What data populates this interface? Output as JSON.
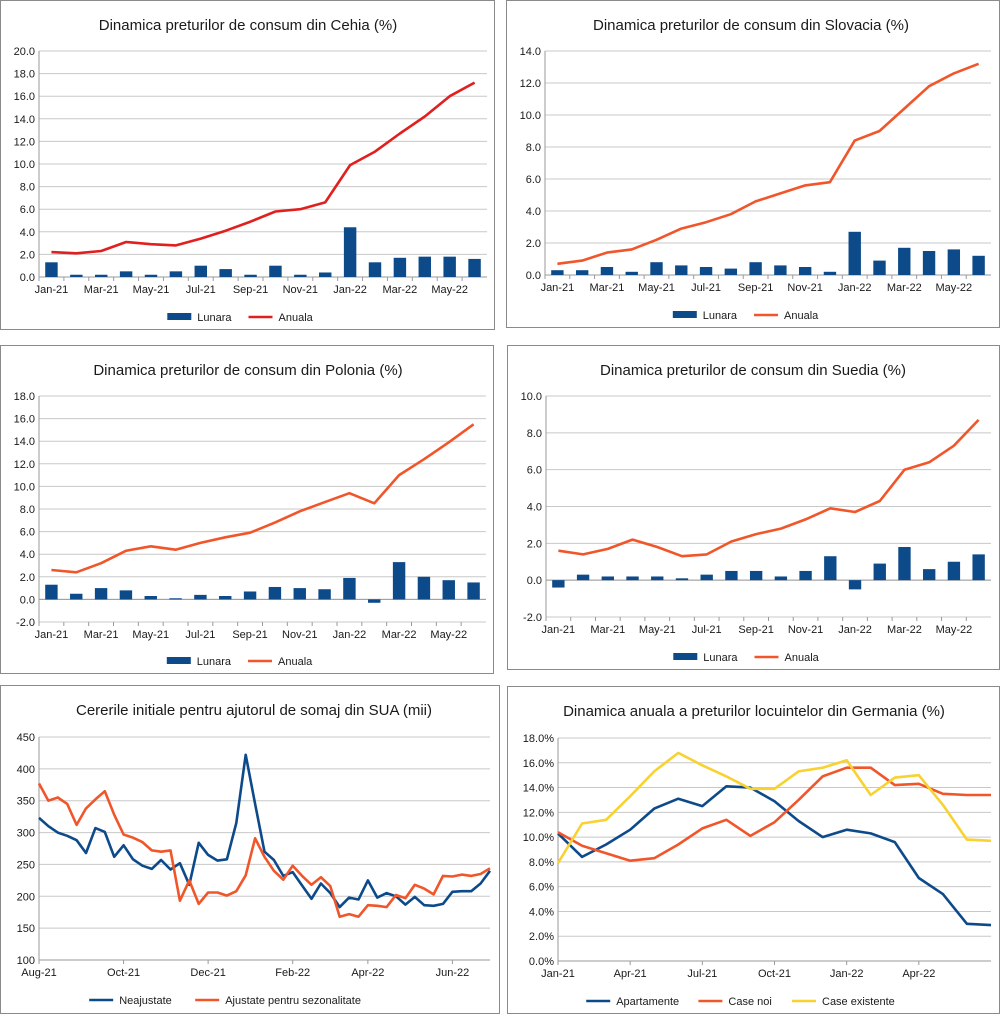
{
  "chart_data": [
    {
      "id": "cz",
      "type": "bar+line",
      "title": "Dinamica preturilor de consum din Cehia (%)",
      "ylim": [
        0,
        20
      ],
      "ytick_step": 2,
      "ytick_decimals": 1,
      "categories": [
        "Jan-21",
        "Feb-21",
        "Mar-21",
        "Apr-21",
        "May-21",
        "Jun-21",
        "Jul-21",
        "Aug-21",
        "Sep-21",
        "Oct-21",
        "Nov-21",
        "Dec-21",
        "Jan-22",
        "Feb-22",
        "Mar-22",
        "Apr-22",
        "May-22",
        "Jun-22"
      ],
      "xtick_labels": [
        "Jan-21",
        "Mar-21",
        "May-21",
        "Jul-21",
        "Sep-21",
        "Nov-21",
        "Jan-22",
        "Mar-22",
        "May-22"
      ],
      "series": [
        {
          "name": "Lunara",
          "kind": "bar",
          "color": "#0d4a8a",
          "values": [
            1.3,
            0.2,
            0.2,
            0.5,
            0.2,
            0.5,
            1.0,
            0.7,
            0.2,
            1.0,
            0.2,
            0.4,
            4.4,
            1.3,
            1.7,
            1.8,
            1.8,
            1.6
          ]
        },
        {
          "name": "Anuala",
          "kind": "line",
          "color": "#e0201f",
          "values": [
            2.2,
            2.1,
            2.3,
            3.1,
            2.9,
            2.8,
            3.4,
            4.1,
            4.9,
            5.8,
            6.0,
            6.6,
            9.9,
            11.1,
            12.7,
            14.2,
            16.0,
            17.2
          ]
        }
      ]
    },
    {
      "id": "sk",
      "type": "bar+line",
      "title": "Dinamica preturilor de consum din Slovacia (%)",
      "ylim": [
        0,
        14
      ],
      "ytick_step": 2,
      "ytick_decimals": 1,
      "categories": [
        "Jan-21",
        "Feb-21",
        "Mar-21",
        "Apr-21",
        "May-21",
        "Jun-21",
        "Jul-21",
        "Aug-21",
        "Sep-21",
        "Oct-21",
        "Nov-21",
        "Dec-21",
        "Jan-22",
        "Feb-22",
        "Mar-22",
        "Apr-22",
        "May-22",
        "Jun-22"
      ],
      "xtick_labels": [
        "Jan-21",
        "Mar-21",
        "May-21",
        "Jul-21",
        "Sep-21",
        "Nov-21",
        "Jan-22",
        "Mar-22",
        "May-22"
      ],
      "series": [
        {
          "name": "Lunara",
          "kind": "bar",
          "color": "#0d4a8a",
          "values": [
            0.3,
            0.3,
            0.5,
            0.2,
            0.8,
            0.6,
            0.5,
            0.4,
            0.8,
            0.6,
            0.5,
            0.2,
            2.7,
            0.9,
            1.7,
            1.5,
            1.6,
            1.2
          ]
        },
        {
          "name": "Anuala",
          "kind": "line",
          "color": "#f0562a",
          "values": [
            0.7,
            0.9,
            1.4,
            1.6,
            2.2,
            2.9,
            3.3,
            3.8,
            4.6,
            5.1,
            5.6,
            5.8,
            8.4,
            9.0,
            10.4,
            11.8,
            12.6,
            13.2
          ]
        }
      ]
    },
    {
      "id": "pl",
      "type": "bar+line",
      "title": "Dinamica preturilor de consum din Polonia (%)",
      "ylim": [
        -2,
        18
      ],
      "ytick_step": 2,
      "ytick_decimals": 1,
      "categories": [
        "Jan-21",
        "Feb-21",
        "Mar-21",
        "Apr-21",
        "May-21",
        "Jun-21",
        "Jul-21",
        "Aug-21",
        "Sep-21",
        "Oct-21",
        "Nov-21",
        "Dec-21",
        "Jan-22",
        "Feb-22",
        "Mar-22",
        "Apr-22",
        "May-22",
        "Jun-22"
      ],
      "xtick_labels": [
        "Jan-21",
        "Mar-21",
        "May-21",
        "Jul-21",
        "Sep-21",
        "Nov-21",
        "Jan-22",
        "Mar-22",
        "May-22"
      ],
      "series": [
        {
          "name": "Lunara",
          "kind": "bar",
          "color": "#0d4a8a",
          "values": [
            1.3,
            0.5,
            1.0,
            0.8,
            0.3,
            0.1,
            0.4,
            0.3,
            0.7,
            1.1,
            1.0,
            0.9,
            1.9,
            -0.3,
            3.3,
            2.0,
            1.7,
            1.5
          ]
        },
        {
          "name": "Anuala",
          "kind": "line",
          "color": "#f0562a",
          "values": [
            2.6,
            2.4,
            3.2,
            4.3,
            4.7,
            4.4,
            5.0,
            5.5,
            5.9,
            6.8,
            7.8,
            8.6,
            9.4,
            8.5,
            11.0,
            12.4,
            13.9,
            15.5
          ]
        }
      ]
    },
    {
      "id": "se",
      "type": "bar+line",
      "title": "Dinamica preturilor de consum din Suedia (%)",
      "ylim": [
        -2,
        10
      ],
      "ytick_step": 2,
      "ytick_decimals": 1,
      "categories": [
        "Jan-21",
        "Feb-21",
        "Mar-21",
        "Apr-21",
        "May-21",
        "Jun-21",
        "Jul-21",
        "Aug-21",
        "Sep-21",
        "Oct-21",
        "Nov-21",
        "Dec-21",
        "Jan-22",
        "Feb-22",
        "Mar-22",
        "Apr-22",
        "May-22",
        "Jun-22"
      ],
      "xtick_labels": [
        "Jan-21",
        "Mar-21",
        "May-21",
        "Jul-21",
        "Sep-21",
        "Nov-21",
        "Jan-22",
        "Mar-22",
        "May-22"
      ],
      "series": [
        {
          "name": "Lunara",
          "kind": "bar",
          "color": "#0d4a8a",
          "values": [
            -0.4,
            0.3,
            0.2,
            0.2,
            0.2,
            0.1,
            0.3,
            0.5,
            0.5,
            0.2,
            0.5,
            1.3,
            -0.5,
            0.9,
            1.8,
            0.6,
            1.0,
            1.4
          ]
        },
        {
          "name": "Anuala",
          "kind": "line",
          "color": "#f0562a",
          "values": [
            1.6,
            1.4,
            1.7,
            2.2,
            1.8,
            1.3,
            1.4,
            2.1,
            2.5,
            2.8,
            3.3,
            3.9,
            3.7,
            4.3,
            6.0,
            6.4,
            7.3,
            8.7
          ]
        }
      ]
    },
    {
      "id": "us",
      "type": "line",
      "title": "Cererile initiale pentru ajutorul de somaj din SUA (mii)",
      "ylim": [
        100,
        450
      ],
      "ytick_step": 50,
      "ytick_decimals": 0,
      "x_count": 49,
      "xtick_labels": [
        {
          "pos": 0,
          "label": "Aug-21"
        },
        {
          "pos": 9,
          "label": "Oct-21"
        },
        {
          "pos": 18,
          "label": "Dec-21"
        },
        {
          "pos": 27,
          "label": "Feb-22"
        },
        {
          "pos": 35,
          "label": "Apr-22"
        },
        {
          "pos": 44,
          "label": "Jun-22"
        }
      ],
      "series": [
        {
          "name": "Neajustate",
          "kind": "line",
          "color": "#0d4a8a",
          "values": [
            323,
            310,
            300,
            295,
            288,
            268,
            307,
            301,
            262,
            280,
            258,
            248,
            243,
            257,
            242,
            252,
            218,
            284,
            265,
            256,
            258,
            315,
            422,
            345,
            270,
            257,
            232,
            238,
            217,
            196,
            220,
            205,
            183,
            198,
            195,
            225,
            198,
            205,
            200,
            187,
            199,
            186,
            185,
            188,
            207,
            208,
            208,
            220,
            240
          ]
        },
        {
          "name": "Ajustate pentru sezonalitate",
          "kind": "line",
          "color": "#f0562a",
          "values": [
            377,
            350,
            355,
            345,
            312,
            338,
            352,
            365,
            328,
            297,
            292,
            285,
            272,
            270,
            272,
            193,
            225,
            188,
            206,
            206,
            201,
            208,
            233,
            291,
            262,
            240,
            226,
            248,
            232,
            218,
            230,
            216,
            168,
            172,
            168,
            186,
            185,
            183,
            202,
            197,
            218,
            212,
            203,
            232,
            231,
            234,
            232,
            235,
            244
          ]
        }
      ]
    },
    {
      "id": "de",
      "type": "line",
      "title": "Dinamica anuala a preturilor locuintelor din Germania (%)",
      "ylim": [
        0,
        18
      ],
      "ytick_step": 2,
      "ytick_decimals": 1,
      "ytick_suffix": "%",
      "x_count": 19,
      "xtick_labels": [
        {
          "pos": 0,
          "label": "Jan-21"
        },
        {
          "pos": 3,
          "label": "Apr-21"
        },
        {
          "pos": 6,
          "label": "Jul-21"
        },
        {
          "pos": 9,
          "label": "Oct-21"
        },
        {
          "pos": 12,
          "label": "Jan-22"
        },
        {
          "pos": 15,
          "label": "Apr-22"
        }
      ],
      "series": [
        {
          "name": "Apartamente",
          "kind": "line",
          "color": "#0d4a8a",
          "values": [
            10.3,
            8.4,
            9.4,
            10.6,
            12.3,
            13.1,
            12.5,
            14.1,
            14.0,
            12.9,
            11.3,
            10.0,
            10.6,
            10.3,
            9.6,
            6.7,
            5.4,
            3.0,
            2.9
          ]
        },
        {
          "name": "Case noi",
          "kind": "line",
          "color": "#f0562a",
          "values": [
            10.4,
            9.3,
            8.7,
            8.1,
            8.3,
            9.4,
            10.7,
            11.4,
            10.1,
            11.2,
            13.0,
            14.9,
            15.6,
            15.6,
            14.2,
            14.3,
            13.5,
            13.4,
            13.4
          ]
        },
        {
          "name": "Case existente",
          "kind": "line",
          "color": "#f8d230",
          "values": [
            7.9,
            11.1,
            11.4,
            13.3,
            15.3,
            16.8,
            15.8,
            14.9,
            13.9,
            13.9,
            15.3,
            15.6,
            16.2,
            13.4,
            14.8,
            15.0,
            12.6,
            9.8,
            9.7
          ]
        }
      ]
    }
  ]
}
